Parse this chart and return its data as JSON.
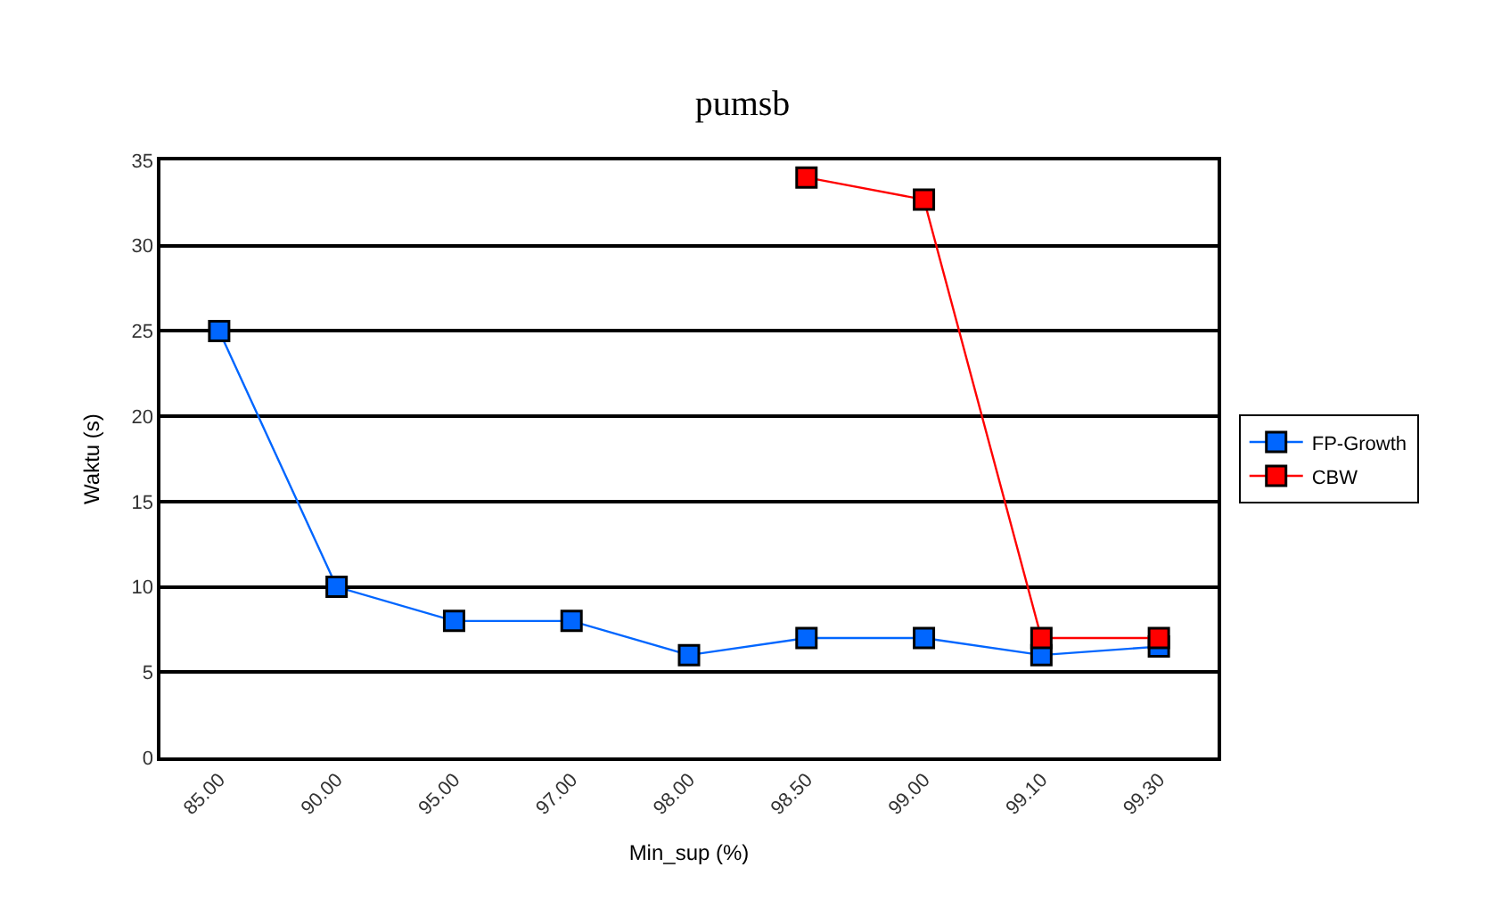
{
  "chart_data": {
    "type": "line",
    "title": "pumsb",
    "xlabel": "Min_sup (%)",
    "ylabel": "Waktu (s)",
    "categories": [
      "85.00",
      "90.00",
      "95.00",
      "97.00",
      "98.00",
      "98.50",
      "99.00",
      "99.10",
      "99.30"
    ],
    "series": [
      {
        "name": "FP-Growth",
        "color": "#0066ff",
        "values": [
          25,
          10,
          8,
          8,
          6,
          7,
          7,
          6,
          6.5
        ]
      },
      {
        "name": "CBW",
        "color": "#ff0000",
        "values": [
          null,
          null,
          null,
          null,
          null,
          34,
          32.7,
          7,
          7
        ]
      }
    ],
    "ylim": [
      0,
      35
    ],
    "yticks": [
      0,
      5,
      10,
      15,
      20,
      25,
      30,
      35
    ],
    "grid": "y",
    "legend": "right",
    "marker": "square",
    "line_style": "solid"
  }
}
